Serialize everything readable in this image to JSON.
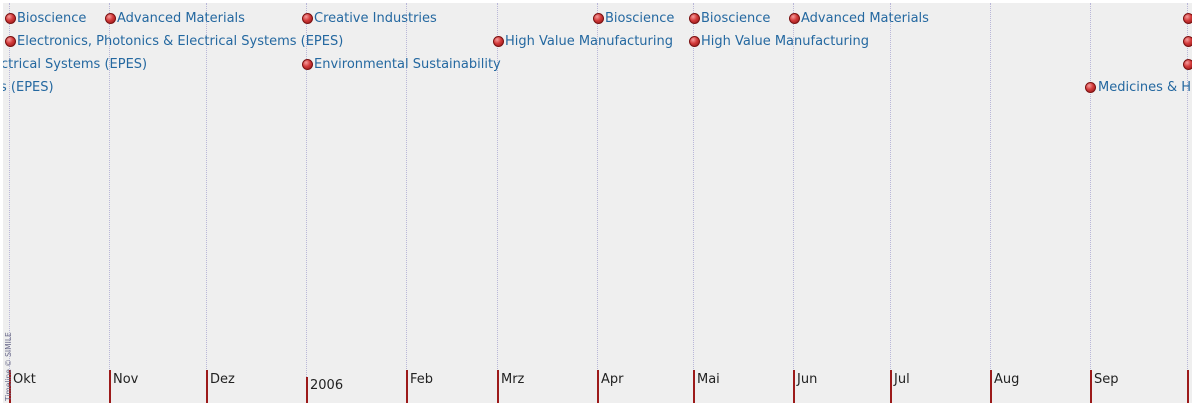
{
  "copyright": "Timeline © SIMILE",
  "months": [
    {
      "label": "Okt"
    },
    {
      "label": "Nov"
    },
    {
      "label": "Dez"
    },
    {
      "label": "2006",
      "year": true
    },
    {
      "label": "Feb"
    },
    {
      "label": "Mrz"
    },
    {
      "label": "Apr"
    },
    {
      "label": "Mai"
    },
    {
      "label": "Jun"
    },
    {
      "label": "Jul"
    },
    {
      "label": "Aug"
    },
    {
      "label": "Sep"
    },
    {
      "label": ""
    }
  ],
  "events": [
    {
      "label": "Bioscience"
    },
    {
      "label": "Advanced Materials"
    },
    {
      "label": "Creative Industries"
    },
    {
      "label": "Bioscience"
    },
    {
      "label": "Bioscience"
    },
    {
      "label": "Advanced Materials"
    },
    {
      "label": "Electronics, Photonics & Electrical Systems (EPES)"
    },
    {
      "label": "High Value Manufacturing"
    },
    {
      "label": "High Value Manufacturing"
    },
    {
      "label": "ctrical Systems (EPES)"
    },
    {
      "label": "Environmental Sustainability"
    },
    {
      "label": "s (EPES)"
    },
    {
      "label": "Medicines & H"
    }
  ]
}
